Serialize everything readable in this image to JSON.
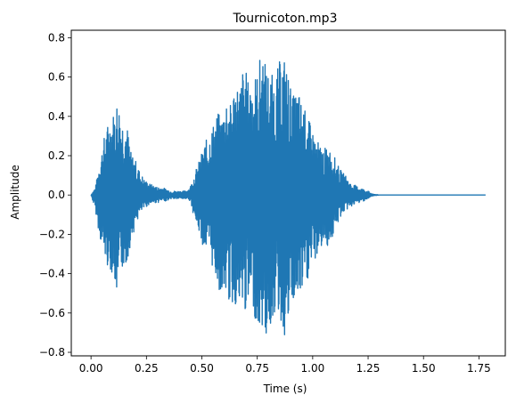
{
  "chart_data": {
    "type": "line",
    "title": "Tournicoton.mp3",
    "xlabel": "Time (s)",
    "ylabel": "Amplitude",
    "xlim": [
      -0.089,
      1.869
    ],
    "ylim": [
      -0.818,
      0.838
    ],
    "xticks": [
      0.0,
      0.25,
      0.5,
      0.75,
      1.0,
      1.25,
      1.5,
      1.75
    ],
    "xtick_labels": [
      "0.00",
      "0.25",
      "0.50",
      "0.75",
      "1.00",
      "1.25",
      "1.50",
      "1.75"
    ],
    "yticks": [
      -0.8,
      -0.6,
      -0.4,
      -0.2,
      0.0,
      0.2,
      0.4,
      0.6,
      0.8
    ],
    "ytick_labels": [
      "−0.8",
      "−0.6",
      "−0.4",
      "−0.2",
      "0.0",
      "0.2",
      "0.4",
      "0.6",
      "0.8"
    ],
    "grid": false,
    "line_color": "#1f77b4",
    "series": [
      {
        "x": [
          0.0,
          0.02,
          0.04,
          0.06,
          0.08,
          0.1,
          0.12,
          0.14,
          0.16,
          0.18,
          0.2,
          0.22,
          0.24,
          0.26,
          0.28,
          0.3,
          0.32,
          0.34,
          0.36,
          0.38,
          0.4,
          0.42,
          0.44,
          0.45,
          0.47,
          0.49,
          0.51,
          0.53,
          0.55,
          0.57,
          0.59,
          0.61,
          0.63,
          0.65,
          0.67,
          0.69,
          0.71,
          0.73,
          0.75,
          0.77,
          0.79,
          0.81,
          0.83,
          0.85,
          0.87,
          0.89,
          0.91,
          0.93,
          0.95,
          0.97,
          0.99,
          1.01,
          1.03,
          1.05,
          1.07,
          1.09,
          1.11,
          1.13,
          1.15,
          1.17,
          1.19,
          1.21,
          1.23,
          1.25,
          1.27,
          1.3,
          1.5,
          1.78
        ],
        "upper": [
          0.0,
          0.04,
          0.18,
          0.3,
          0.38,
          0.42,
          0.5,
          0.4,
          0.38,
          0.22,
          0.18,
          0.12,
          0.08,
          0.06,
          0.05,
          0.04,
          0.04,
          0.03,
          0.02,
          0.02,
          0.02,
          0.02,
          0.03,
          0.05,
          0.12,
          0.18,
          0.26,
          0.3,
          0.36,
          0.42,
          0.4,
          0.52,
          0.46,
          0.6,
          0.55,
          0.68,
          0.58,
          0.62,
          0.62,
          0.76,
          0.66,
          0.62,
          0.6,
          0.68,
          0.72,
          0.62,
          0.5,
          0.55,
          0.48,
          0.42,
          0.36,
          0.3,
          0.26,
          0.24,
          0.24,
          0.22,
          0.16,
          0.12,
          0.1,
          0.06,
          0.05,
          0.04,
          0.03,
          0.02,
          0.005,
          0.0,
          0.0,
          0.0
        ],
        "lower": [
          0.0,
          -0.08,
          -0.22,
          -0.32,
          -0.38,
          -0.4,
          -0.56,
          -0.38,
          -0.36,
          -0.24,
          -0.16,
          -0.1,
          -0.07,
          -0.05,
          -0.04,
          -0.04,
          -0.03,
          -0.03,
          -0.02,
          -0.02,
          -0.02,
          -0.02,
          -0.02,
          -0.04,
          -0.14,
          -0.2,
          -0.28,
          -0.3,
          -0.38,
          -0.46,
          -0.52,
          -0.5,
          -0.58,
          -0.56,
          -0.62,
          -0.6,
          -0.6,
          -0.56,
          -0.7,
          -0.68,
          -0.74,
          -0.68,
          -0.6,
          -0.62,
          -0.74,
          -0.68,
          -0.56,
          -0.56,
          -0.52,
          -0.48,
          -0.38,
          -0.34,
          -0.28,
          -0.26,
          -0.26,
          -0.22,
          -0.16,
          -0.1,
          -0.08,
          -0.06,
          -0.05,
          -0.04,
          -0.03,
          -0.02,
          -0.005,
          0.0,
          0.0,
          0.0
        ]
      }
    ]
  }
}
